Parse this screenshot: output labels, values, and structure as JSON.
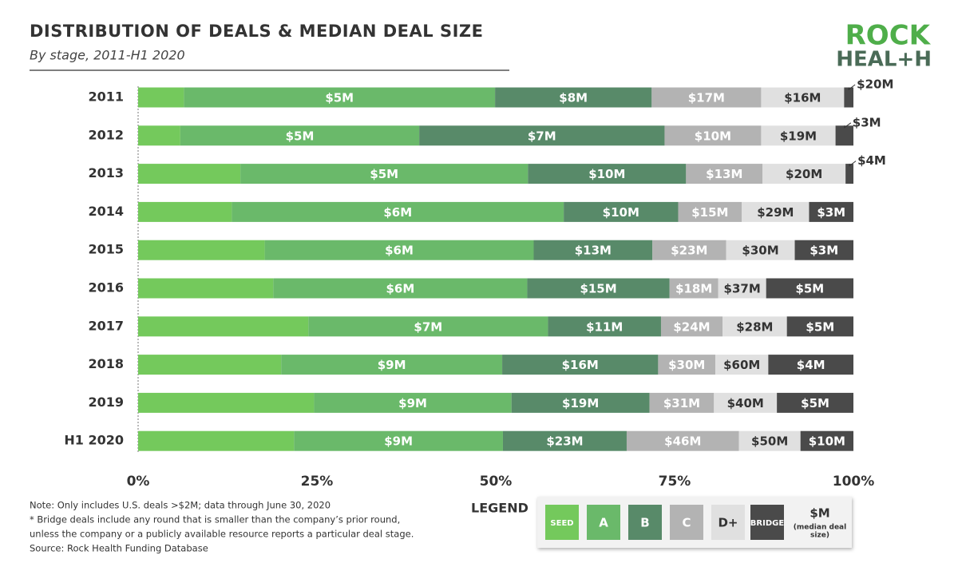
{
  "chart_data": {
    "type": "stacked_barh_100",
    "title": "DISTRIBUTION OF DEALS & MEDIAN DEAL SIZE",
    "subtitle": "By stage, 2011-H1 2020",
    "logo": [
      "ROCK",
      "HEAL+H"
    ],
    "categories": [
      "2011",
      "2012",
      "2013",
      "2014",
      "2015",
      "2016",
      "2017",
      "2018",
      "2019",
      "H1 2020"
    ],
    "series": [
      {
        "name": "SEED",
        "color": "#74c95c",
        "text_color": "#ffffff",
        "values": [
          6.4,
          5.9,
          14.3,
          13.1,
          17.7,
          18.9,
          23.8,
          20.0,
          24.6,
          21.8
        ]
      },
      {
        "name": "A",
        "color": "#6ab96a",
        "text_color": "#ffffff",
        "values": [
          43.5,
          33.4,
          40.2,
          46.4,
          37.6,
          35.5,
          33.5,
          30.9,
          27.6,
          29.2
        ],
        "median_labels": [
          "$5M",
          "$5M",
          "$5M",
          "$6M",
          "$6M",
          "$6M",
          "$7M",
          "$9M",
          "$9M",
          "$9M"
        ]
      },
      {
        "name": "B",
        "color": "#588a69",
        "text_color": "#ffffff",
        "values": [
          21.9,
          34.3,
          22.1,
          16.0,
          16.6,
          19.9,
          15.8,
          21.8,
          19.3,
          17.3
        ],
        "median_labels": [
          "$8M",
          "$7M",
          "$10M",
          "$10M",
          "$13M",
          "$15M",
          "$11M",
          "$16M",
          "$19M",
          "$23M"
        ]
      },
      {
        "name": "C",
        "color": "#b3b3b3",
        "text_color": "#ffffff",
        "values": [
          15.3,
          13.5,
          10.7,
          8.9,
          10.3,
          6.8,
          8.6,
          8.0,
          9.0,
          15.7
        ],
        "median_labels": [
          "$17M",
          "$10M",
          "$13M",
          "$15M",
          "$23M",
          "$18M",
          "$24M",
          "$30M",
          "$31M",
          "$46M"
        ]
      },
      {
        "name": "D+",
        "color": "#e0e0e0",
        "text_color": "#333333",
        "values": [
          11.6,
          10.4,
          11.6,
          9.4,
          9.6,
          6.7,
          9.0,
          7.4,
          8.8,
          8.6
        ],
        "median_labels": [
          "$16M",
          "$19M",
          "$20M",
          "$29M",
          "$30M",
          "$37M",
          "$28M",
          "$60M",
          "$40M",
          "$50M"
        ]
      },
      {
        "name": "BRIDGE",
        "color": "#4a4a4a",
        "text_color": "#ffffff",
        "values": [
          1.3,
          2.5,
          1.1,
          6.2,
          8.2,
          12.2,
          9.3,
          11.9,
          10.7,
          7.4
        ],
        "median_labels": [
          "$20M",
          "$3M",
          "$4M",
          "$3M",
          "$3M",
          "$5M",
          "$5M",
          "$4M",
          "$5M",
          "$10M"
        ]
      }
    ],
    "xlim": [
      0,
      100
    ],
    "xticks": [
      {
        "value": 0,
        "label": "0%"
      },
      {
        "value": 25,
        "label": "25%"
      },
      {
        "value": 50,
        "label": "50%"
      },
      {
        "value": 75,
        "label": "75%"
      },
      {
        "value": 100,
        "label": "100%"
      }
    ],
    "legend_title": "LEGEND",
    "legend_key": "$M",
    "legend_key_note": [
      "(median deal",
      "size)"
    ],
    "notes": [
      "Note: Only includes U.S. deals >$2M; data through June 30, 2020",
      "*  Bridge deals include any round that is smaller than the company’s prior round,",
      "    unless the company or a publicly available resource reports a particular deal stage.",
      "Source: Rock Health Funding Database"
    ]
  }
}
